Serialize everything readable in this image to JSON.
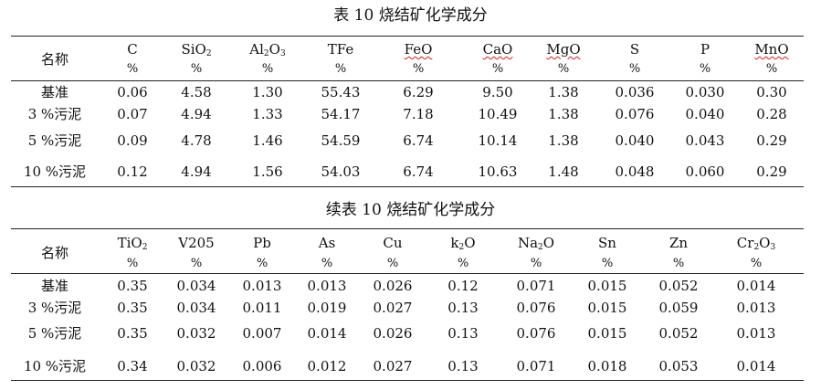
{
  "table1": {
    "title": "表 10 烧结矿化学成分",
    "name_header": "名称",
    "unit": "%",
    "columns": [
      {
        "base": "C",
        "sub": ""
      },
      {
        "base": "SiO",
        "sub": "2"
      },
      {
        "base": "Al",
        "sub": "2",
        "rest": "O",
        "sub2": "3"
      },
      {
        "base": "TFe",
        "sub": ""
      },
      {
        "base": "FeO",
        "sub": ""
      },
      {
        "base": "CaO",
        "sub": ""
      },
      {
        "base": "MgO",
        "sub": ""
      },
      {
        "base": "S",
        "sub": ""
      },
      {
        "base": "P",
        "sub": ""
      },
      {
        "base": "MnO",
        "sub": ""
      }
    ],
    "rows": [
      {
        "label": "基准",
        "values": [
          "0.06",
          "4.58",
          "1.30",
          "55.43",
          "6.29",
          "9.50",
          "1.38",
          "0.036",
          "0.030",
          "0.30"
        ]
      },
      {
        "label": "3 %污泥",
        "values": [
          "0.07",
          "4.94",
          "1.33",
          "54.17",
          "7.18",
          "10.49",
          "1.38",
          "0.076",
          "0.040",
          "0.28"
        ]
      },
      {
        "label": "5 %污泥",
        "values": [
          "0.09",
          "4.78",
          "1.46",
          "54.59",
          "6.74",
          "10.14",
          "1.38",
          "0.040",
          "0.043",
          "0.29"
        ]
      },
      {
        "label": "10 %污泥",
        "values": [
          "0.12",
          "4.94",
          "1.56",
          "54.03",
          "6.74",
          "10.63",
          "1.48",
          "0.048",
          "0.060",
          "0.29"
        ]
      }
    ]
  },
  "table2": {
    "title": "续表 10 烧结矿化学成分",
    "name_header": "名称",
    "unit": "%",
    "columns": [
      {
        "base": "TiO",
        "sub": "2"
      },
      {
        "base": "V205",
        "sub": ""
      },
      {
        "base": "Pb",
        "sub": ""
      },
      {
        "base": "As",
        "sub": ""
      },
      {
        "base": "Cu",
        "sub": ""
      },
      {
        "base": "k",
        "sub": "2",
        "rest": "O"
      },
      {
        "base": "Na",
        "sub": "2",
        "rest": "O"
      },
      {
        "base": "Sn",
        "sub": ""
      },
      {
        "base": "Zn",
        "sub": ""
      },
      {
        "base": "Cr",
        "sub": "2",
        "rest": "O",
        "sub2": "3"
      }
    ],
    "rows": [
      {
        "label": "基准",
        "values": [
          "0.35",
          "0.034",
          "0.013",
          "0.013",
          "0.026",
          "0.12",
          "0.071",
          "0.015",
          "0.052",
          "0.014"
        ]
      },
      {
        "label": "3 %污泥",
        "values": [
          "0.35",
          "0.034",
          "0.011",
          "0.019",
          "0.027",
          "0.13",
          "0.076",
          "0.015",
          "0.059",
          "0.013"
        ]
      },
      {
        "label": "5 %污泥",
        "values": [
          "0.35",
          "0.032",
          "0.007",
          "0.014",
          "0.026",
          "0.13",
          "0.076",
          "0.015",
          "0.052",
          "0.013"
        ]
      },
      {
        "label": "10 %污泥",
        "values": [
          "0.34",
          "0.032",
          "0.006",
          "0.012",
          "0.027",
          "0.13",
          "0.071",
          "0.018",
          "0.053",
          "0.014"
        ]
      }
    ]
  }
}
